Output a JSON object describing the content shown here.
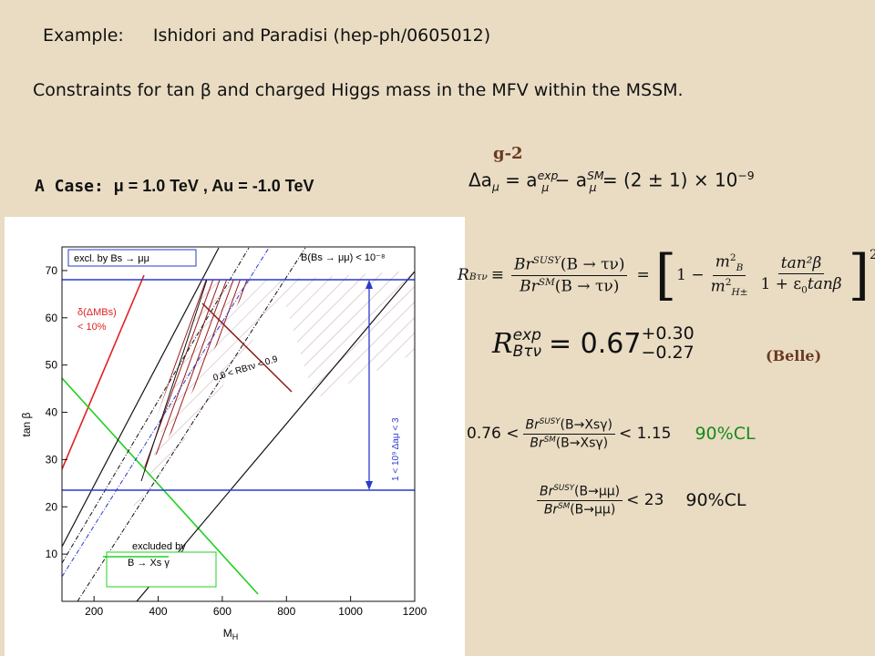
{
  "header": {
    "example": "Example:",
    "reference": "Ishidori and  Paradisi (hep-ph/0605012)",
    "subtitle": "Constraints for tan β and charged Higgs mass in the MFV within the MSSM."
  },
  "case": {
    "label": "A Case:",
    "params": "μ = 1.0 TeV ,  Au = -1.0 TeV"
  },
  "plot": {
    "xlabel": "M",
    "xlabel_sub": "H",
    "ylabel": "tan β",
    "xlim": [
      100,
      1200
    ],
    "ylim": [
      0,
      75
    ],
    "xticks": [
      200,
      400,
      600,
      800,
      1000,
      1200
    ],
    "yticks": [
      10,
      20,
      30,
      40,
      50,
      60,
      70
    ],
    "annotations": {
      "excl_bsmumu": "excl. by Bs → μμ",
      "b_bsmumu": "B(Bs → μμ) < 10⁻⁸",
      "dm_bs_1": "δ(ΔMBs)",
      "dm_bs_2": "< 10%",
      "r_btn": "0.6 < RBτν < 0.9",
      "g2": "1 < 10⁹ Δaμ < 3",
      "excluded_by": "excluded by",
      "bxsg": "B → Xs γ"
    }
  },
  "equations": {
    "g2": {
      "label": "g-2",
      "lhs": "Δa",
      "lhs_sub": "μ",
      "eq1": " = a",
      "a1_sup": "exp",
      "a1_sub": "μ",
      "minus": " − a",
      "a2_sup": "SM",
      "a2_sub": "μ",
      "rhs": " = (2 ± 1) × 10",
      "rhs_sup": "−9"
    },
    "rbtn": {
      "lhs": "R",
      "lhs_sub": "Bτν",
      "def": "≡",
      "num": "Br",
      "num_sup": "SUSY",
      "num_arg": "(B → τν)",
      "den": "Br",
      "den_sup": "SM",
      "den_arg": "(B → τν)",
      "eq": "=",
      "one": "1 −",
      "mb": "m",
      "mb_sup": "2",
      "mb_sub": "B",
      "mh": "m",
      "mh_sup": "2",
      "mh_sub": "H±",
      "tan": "tan²β",
      "onep": "1 + ε",
      "eps_sub": "0",
      "tanb": "tanβ",
      "power": "2"
    },
    "rexp": {
      "lhs": "R",
      "sup": "exp",
      "sub": "Bτν",
      "eq": "= 0.67",
      "up": "+0.30",
      "down": "−0.27",
      "source": "(Belle)"
    },
    "bsg": {
      "low": "0.76 <",
      "num": "Br",
      "num_sup": "SUSY",
      "num_arg": "(B→Xsγ)",
      "den": "Br",
      "den_sup": "SM",
      "den_arg": "(B→Xsγ)",
      "high": "< 1.15",
      "cl": "90%CL"
    },
    "bmm": {
      "num": "Br",
      "num_sup": "SUSY",
      "num_arg": "(B→μμ)",
      "den": "Br",
      "den_sup": "SM",
      "den_arg": "(B→μμ)",
      "high": "< 23",
      "cl": "90%CL"
    }
  }
}
